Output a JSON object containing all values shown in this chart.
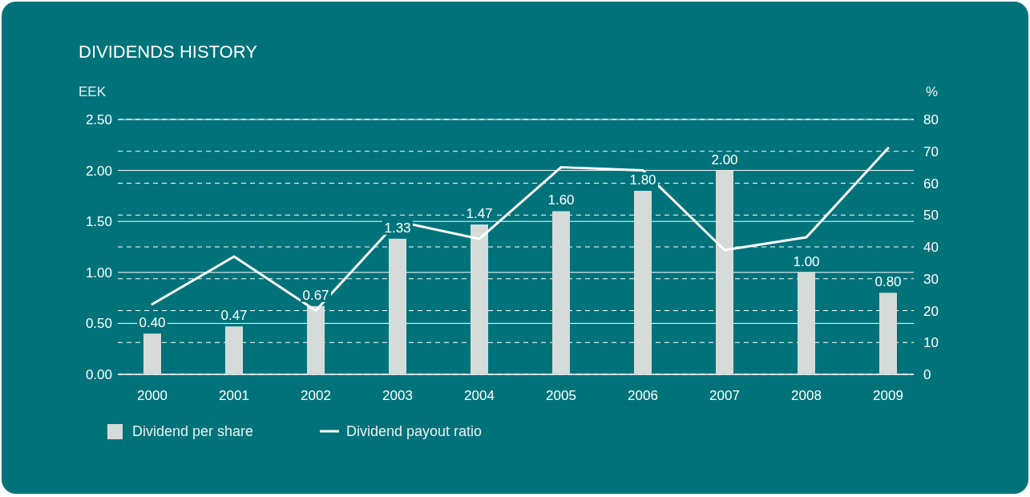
{
  "chart_data": {
    "type": "bar",
    "title": "DIVIDENDS HISTORY",
    "ylabel": "EEK",
    "y2label": "%",
    "categories": [
      "2000",
      "2001",
      "2002",
      "2003",
      "2004",
      "2005",
      "2006",
      "2007",
      "2008",
      "2009"
    ],
    "series": [
      {
        "name": "Dividend per share",
        "color": "#d5dbd8",
        "values": [
          0.4,
          0.47,
          0.67,
          1.33,
          1.47,
          1.6,
          1.8,
          2.0,
          1.0,
          0.8
        ],
        "value_labels": [
          "0.40",
          "0.47",
          "0.67",
          "1.33",
          "1.47",
          "1.60",
          "1.80",
          "2.00",
          "1.00",
          "0.80"
        ]
      },
      {
        "name": "Dividend payout ratio",
        "type": "line",
        "axis": "y2",
        "color": "#ffffff",
        "values": [
          22,
          37,
          20,
          48,
          42.5,
          65,
          64,
          39,
          43,
          71
        ]
      }
    ],
    "ylim": [
      0,
      2.5
    ],
    "yticks": [
      {
        "value": 0,
        "label": "0.00"
      },
      {
        "value": 0.5,
        "label": "0.50"
      },
      {
        "value": 1,
        "label": "1.00"
      },
      {
        "value": 1.5,
        "label": "1.50"
      },
      {
        "value": 2,
        "label": "2.00"
      },
      {
        "value": 2.5,
        "label": "2.50"
      }
    ],
    "y2lim": [
      0,
      80
    ],
    "y2ticks": [
      0,
      10,
      20,
      30,
      40,
      50,
      60,
      70,
      80
    ],
    "grid": true,
    "legend": "bottom left",
    "marker": "none",
    "line_style": "solid"
  }
}
